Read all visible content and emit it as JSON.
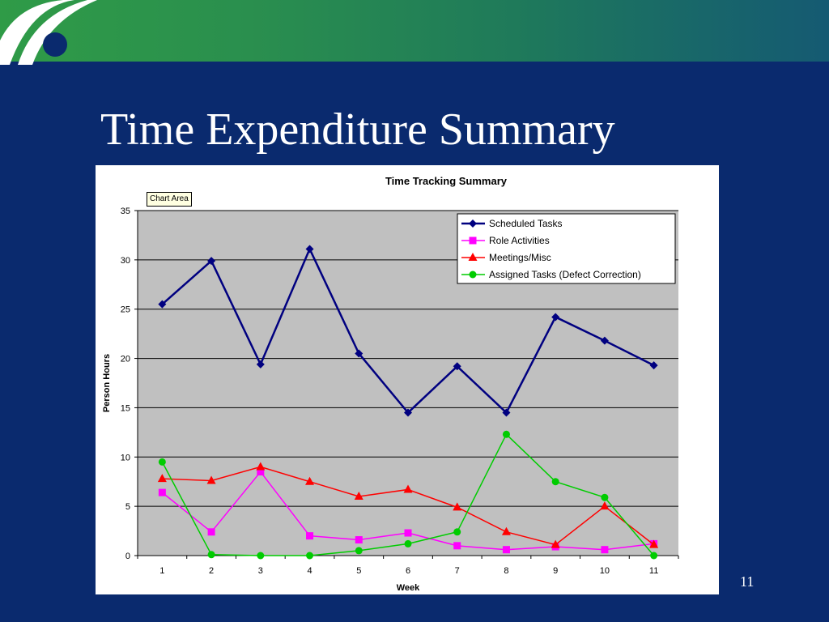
{
  "slide": {
    "title": "Time Expenditure Summary",
    "page_number": "11",
    "chart_area_label": "Chart Area",
    "colors": {
      "background": "#0a2a6e",
      "banner_start": "#2f9b47",
      "banner_end": "#155a72",
      "plot_background": "#c0c0c0"
    }
  },
  "chart_data": {
    "type": "line",
    "title": "Time Tracking Summary",
    "xlabel": "Week",
    "ylabel": "Person Hours",
    "x": [
      1,
      2,
      3,
      4,
      5,
      6,
      7,
      8,
      9,
      10,
      11
    ],
    "ylim": [
      0,
      35
    ],
    "yticks": [
      0,
      5,
      10,
      15,
      20,
      25,
      30,
      35
    ],
    "grid": true,
    "legend_position": "top-right",
    "series": [
      {
        "name": "Scheduled Tasks",
        "color": "#000080",
        "marker": "diamond",
        "values": [
          25.5,
          29.9,
          19.4,
          31.1,
          20.5,
          14.5,
          19.2,
          14.5,
          24.2,
          21.8,
          19.3
        ]
      },
      {
        "name": "Role Activities",
        "color": "#ff00ff",
        "marker": "square",
        "values": [
          6.4,
          2.4,
          8.5,
          2.0,
          1.6,
          2.3,
          1.0,
          0.6,
          0.9,
          0.6,
          1.2
        ]
      },
      {
        "name": "Meetings/Misc",
        "color": "#ff0000",
        "marker": "triangle",
        "values": [
          7.8,
          7.6,
          9.0,
          7.5,
          6.0,
          6.7,
          4.9,
          2.4,
          1.1,
          5.0,
          1.1
        ]
      },
      {
        "name": "Assigned Tasks (Defect Correction)",
        "color": "#00cc00",
        "marker": "circle",
        "values": [
          9.5,
          0.1,
          0.0,
          0.0,
          0.5,
          1.2,
          2.4,
          12.3,
          7.5,
          5.9,
          0.0
        ]
      }
    ]
  }
}
